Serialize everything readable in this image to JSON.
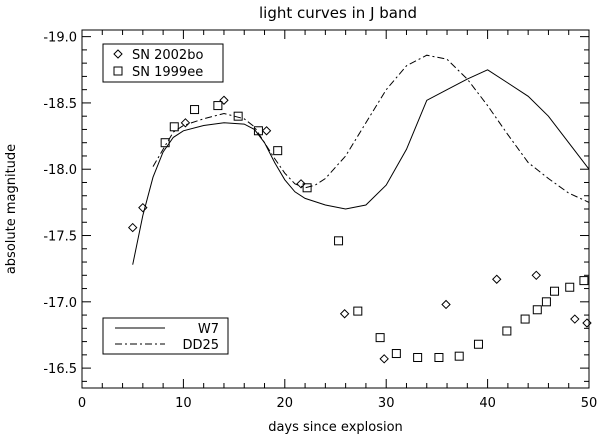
{
  "chart_data": {
    "type": "scatter",
    "title": "light curves in J band",
    "xlabel": "days since explosion",
    "ylabel": "absolute magnitude",
    "xlim": [
      0,
      50
    ],
    "ylim": [
      -16.35,
      -19.05
    ],
    "y_inverted": true,
    "x_ticks": [
      0,
      10,
      20,
      30,
      40,
      50
    ],
    "y_ticks": [
      -16.5,
      -17.0,
      -17.5,
      -18.0,
      -18.5,
      -19.0
    ],
    "x_tick_labels": [
      "0",
      "10",
      "20",
      "30",
      "40",
      "50"
    ],
    "y_tick_labels": [
      "-16.5",
      "-17.0",
      "-17.5",
      "-18.0",
      "-18.5",
      "-19.0"
    ],
    "grid": false,
    "legends": [
      {
        "placement": "top-left",
        "entries": [
          "SN 2002bo",
          "SN 1999ee"
        ]
      },
      {
        "placement": "bottom-left",
        "entries": [
          "W7",
          "DD25"
        ]
      }
    ],
    "series": [
      {
        "name": "SN 2002bo",
        "kind": "scatter",
        "marker": "diamond",
        "points": [
          [
            5.0,
            -17.56
          ],
          [
            6.0,
            -17.71
          ],
          [
            10.2,
            -18.35
          ],
          [
            14.0,
            -18.52
          ],
          [
            18.2,
            -18.29
          ],
          [
            21.6,
            -17.89
          ],
          [
            25.9,
            -16.91
          ],
          [
            29.8,
            -16.57
          ],
          [
            35.9,
            -16.98
          ],
          [
            40.9,
            -17.17
          ],
          [
            44.8,
            -17.2
          ],
          [
            48.6,
            -16.87
          ],
          [
            49.8,
            -16.84
          ]
        ]
      },
      {
        "name": "SN 1999ee",
        "kind": "scatter",
        "marker": "square",
        "points": [
          [
            8.2,
            -18.2
          ],
          [
            9.1,
            -18.32
          ],
          [
            11.1,
            -18.45
          ],
          [
            13.4,
            -18.48
          ],
          [
            15.4,
            -18.4
          ],
          [
            17.4,
            -18.29
          ],
          [
            19.3,
            -18.14
          ],
          [
            22.2,
            -17.86
          ],
          [
            25.3,
            -17.46
          ],
          [
            27.2,
            -16.93
          ],
          [
            29.4,
            -16.73
          ],
          [
            31.0,
            -16.61
          ],
          [
            33.1,
            -16.58
          ],
          [
            35.2,
            -16.58
          ],
          [
            37.2,
            -16.59
          ],
          [
            39.1,
            -16.68
          ],
          [
            41.9,
            -16.78
          ],
          [
            43.7,
            -16.87
          ],
          [
            44.9,
            -16.94
          ],
          [
            45.8,
            -17.0
          ],
          [
            46.6,
            -17.08
          ],
          [
            48.1,
            -17.11
          ],
          [
            49.5,
            -17.16
          ]
        ]
      },
      {
        "name": "W7",
        "kind": "line",
        "style": "solid",
        "points": [
          [
            5.0,
            -17.28
          ],
          [
            6.0,
            -17.65
          ],
          [
            7.0,
            -17.94
          ],
          [
            8.0,
            -18.13
          ],
          [
            9.0,
            -18.24
          ],
          [
            10.0,
            -18.29
          ],
          [
            12.0,
            -18.33
          ],
          [
            14.0,
            -18.35
          ],
          [
            16.0,
            -18.34
          ],
          [
            17.0,
            -18.3
          ],
          [
            18.0,
            -18.2
          ],
          [
            19.0,
            -18.05
          ],
          [
            20.0,
            -17.92
          ],
          [
            21.0,
            -17.83
          ],
          [
            22.0,
            -17.78
          ],
          [
            24.0,
            -17.73
          ],
          [
            26.0,
            -17.7
          ],
          [
            28.0,
            -17.73
          ],
          [
            30.0,
            -17.88
          ],
          [
            32.0,
            -18.15
          ],
          [
            34.0,
            -18.52
          ],
          [
            36.0,
            -18.6
          ],
          [
            38.0,
            -18.68
          ],
          [
            40.0,
            -18.75
          ],
          [
            42.0,
            -18.65
          ],
          [
            44.0,
            -18.55
          ],
          [
            46.0,
            -18.4
          ],
          [
            48.0,
            -18.2
          ],
          [
            50.0,
            -18.0
          ]
        ]
      },
      {
        "name": "DD25",
        "kind": "line",
        "style": "dash-dot",
        "points": [
          [
            7.0,
            -18.02
          ],
          [
            8.0,
            -18.15
          ],
          [
            9.0,
            -18.28
          ],
          [
            10.0,
            -18.33
          ],
          [
            12.0,
            -18.38
          ],
          [
            14.0,
            -18.42
          ],
          [
            16.0,
            -18.38
          ],
          [
            17.0,
            -18.32
          ],
          [
            18.0,
            -18.2
          ],
          [
            19.0,
            -18.08
          ],
          [
            20.0,
            -17.97
          ],
          [
            21.0,
            -17.89
          ],
          [
            22.0,
            -17.86
          ],
          [
            23.0,
            -17.88
          ],
          [
            24.0,
            -17.93
          ],
          [
            26.0,
            -18.1
          ],
          [
            28.0,
            -18.35
          ],
          [
            30.0,
            -18.6
          ],
          [
            32.0,
            -18.78
          ],
          [
            34.0,
            -18.86
          ],
          [
            36.0,
            -18.83
          ],
          [
            38.0,
            -18.68
          ],
          [
            40.0,
            -18.48
          ],
          [
            42.0,
            -18.26
          ],
          [
            44.0,
            -18.05
          ],
          [
            46.0,
            -17.93
          ],
          [
            48.0,
            -17.82
          ],
          [
            50.0,
            -17.75
          ]
        ]
      }
    ]
  }
}
